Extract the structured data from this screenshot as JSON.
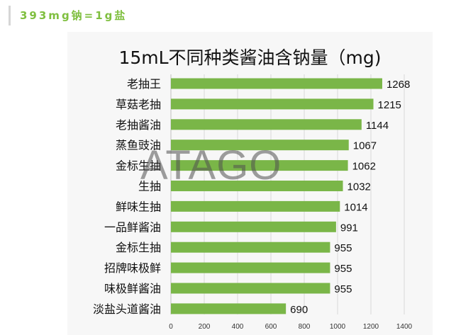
{
  "header": {
    "text": "393mg钠=1g盐"
  },
  "watermark": {
    "text": "ATAGO"
  },
  "chart_data": {
    "type": "bar",
    "orientation": "horizontal",
    "title": "15mL不同种类酱油含钠量（mg)",
    "categories": [
      "老抽王",
      "草菇老抽",
      "老抽酱油",
      "蒸鱼豉油",
      "金标生抽",
      "生抽",
      "鲜味生抽",
      "一品鲜酱油",
      "金标生抽",
      "招牌味极鲜",
      "味极鲜酱油",
      "淡盐头道酱油"
    ],
    "values": [
      1268,
      1215,
      1144,
      1067,
      1062,
      1032,
      1014,
      991,
      955,
      955,
      955,
      690
    ],
    "xlim": [
      0,
      1400
    ],
    "xticks": [
      0,
      200,
      400,
      600,
      800,
      1000,
      1200,
      1400
    ],
    "bar_color": "#7ab648",
    "grid": true
  }
}
